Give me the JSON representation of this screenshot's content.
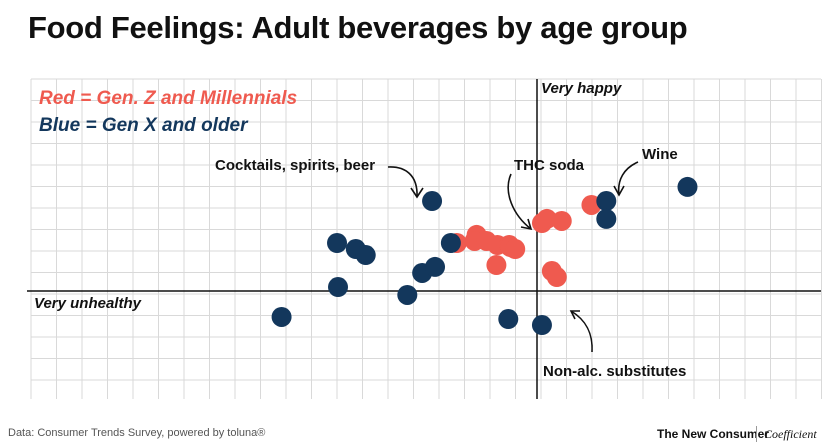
{
  "chart_data": {
    "type": "scatter",
    "title": "Food Feelings: Adult beverages by age group",
    "xlim": [
      -2.6,
      1.4
    ],
    "ylim": [
      -1.0,
      1.0
    ],
    "axis_labels": {
      "top": "Very happy",
      "left": "Very unhealthy"
    },
    "legend": [
      {
        "text": "Red = Gen. Z and Millennials",
        "color": "#ef5a4f"
      },
      {
        "text": "Blue = Gen X and older",
        "color": "#13375c"
      }
    ],
    "series": [
      {
        "name": "Gen. Z and Millennials",
        "color": "#ef5a4f",
        "points": [
          {
            "x": -0.81,
            "y": 0.375
          },
          {
            "x": -0.61,
            "y": 0.438
          },
          {
            "x": -0.63,
            "y": 0.391
          },
          {
            "x": -0.51,
            "y": 0.391
          },
          {
            "x": -0.4,
            "y": 0.359
          },
          {
            "x": -0.28,
            "y": 0.359
          },
          {
            "x": -0.27,
            "y": 0.344
          },
          {
            "x": -0.22,
            "y": 0.328
          },
          {
            "x": -0.41,
            "y": 0.203
          },
          {
            "x": 0.05,
            "y": 0.531
          },
          {
            "x": 0.1,
            "y": 0.563
          },
          {
            "x": 0.25,
            "y": 0.547
          },
          {
            "x": 0.55,
            "y": 0.672
          },
          {
            "x": 0.15,
            "y": 0.156
          },
          {
            "x": 0.2,
            "y": 0.109
          }
        ]
      },
      {
        "name": "Gen X and older",
        "color": "#13375c",
        "points": [
          {
            "x": -2.58,
            "y": -0.203
          },
          {
            "x": -2.02,
            "y": 0.375
          },
          {
            "x": -1.83,
            "y": 0.328
          },
          {
            "x": -1.73,
            "y": 0.281
          },
          {
            "x": -2.01,
            "y": 0.031
          },
          {
            "x": -1.31,
            "y": -0.031
          },
          {
            "x": -1.16,
            "y": 0.141
          },
          {
            "x": -1.03,
            "y": 0.188
          },
          {
            "x": -1.06,
            "y": 0.703
          },
          {
            "x": -0.87,
            "y": 0.375
          },
          {
            "x": -0.29,
            "y": -0.219
          },
          {
            "x": 0.05,
            "y": -0.266
          },
          {
            "x": 0.7,
            "y": 0.703
          },
          {
            "x": 0.7,
            "y": 0.563
          },
          {
            "x": 1.52,
            "y": 0.813
          }
        ]
      }
    ],
    "annotations": [
      {
        "text": "Cocktails, spirits, beer"
      },
      {
        "text": "THC soda"
      },
      {
        "text": "Wine"
      },
      {
        "text": "Non-alc. substitutes"
      }
    ]
  },
  "footer": {
    "source": "Data: Consumer Trends Survey, powered by toluna®",
    "brand1": "The New Consumer",
    "brand2": "Coefficient"
  }
}
